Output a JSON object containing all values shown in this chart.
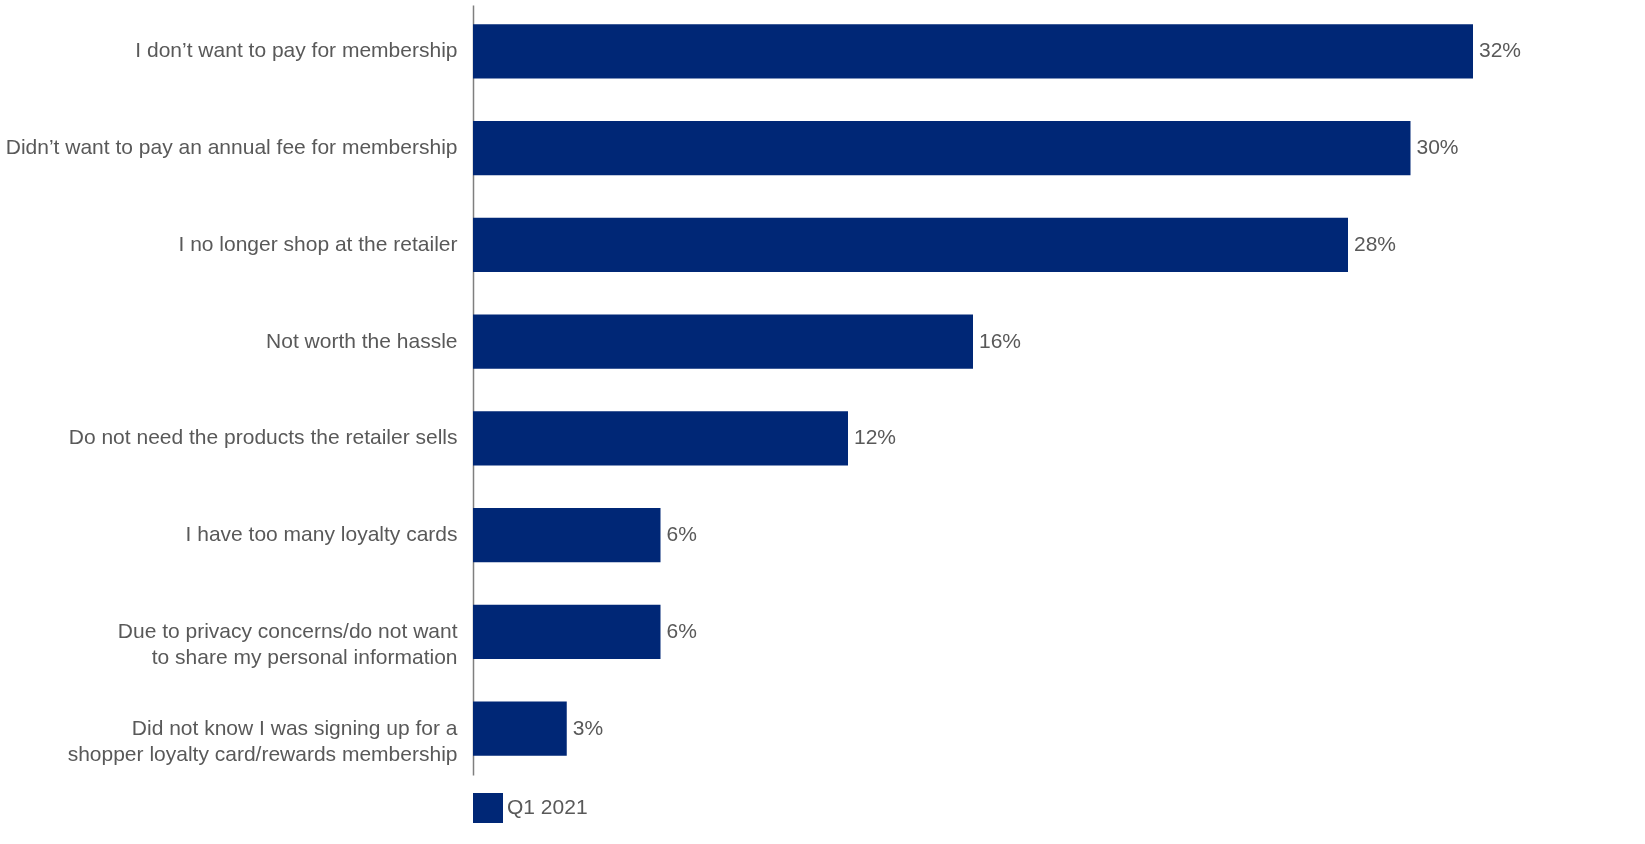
{
  "chart_data": {
    "type": "bar",
    "orientation": "horizontal",
    "categories": [
      "I don’t want to pay for membership",
      "Didn’t want to pay an annual fee for membership",
      "I no longer shop at the retailer",
      "Not worth the hassle",
      "Do not need the products the retailer sells",
      "I have too many loyalty cards",
      "Due to privacy concerns/do not want to share my personal information",
      "Did not know I was signing up for a shopper loyalty card/rewards membership"
    ],
    "series": [
      {
        "name": "Q1 2021",
        "color": "#002776",
        "values": [
          32,
          30,
          28,
          16,
          12,
          6,
          6,
          3
        ],
        "value_labels": [
          "32%",
          "30%",
          "28%",
          "16%",
          "12%",
          "6%",
          "6%",
          "3%"
        ]
      }
    ],
    "legend": "bottom",
    "tick_labels": "y"
  }
}
